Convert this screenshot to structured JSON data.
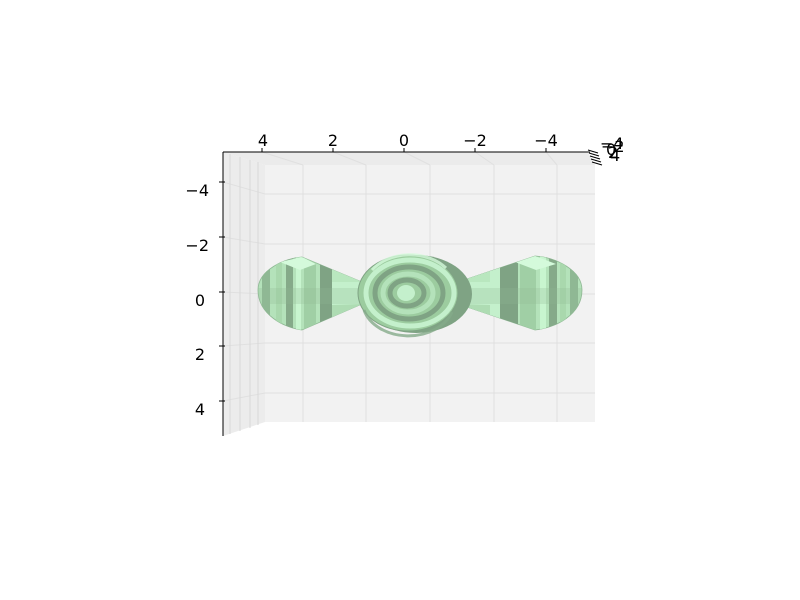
{
  "chart_data": {
    "type": "surface",
    "title": "",
    "xlabel": "",
    "ylabel": "",
    "zlabel": "",
    "x_ticks": [
      "4",
      "2",
      "0",
      "−2",
      "−4"
    ],
    "y_ticks": [
      "−4",
      "−2",
      "0",
      "2",
      "4"
    ],
    "z_ticks": [
      "−4",
      "−2",
      "0",
      "2",
      "4"
    ],
    "xlim": [
      5,
      -5
    ],
    "ylim": [
      -5,
      5
    ],
    "grid": true,
    "colors": {
      "surface_light": "#c4f0cc",
      "surface_mid": "#9ccc9f",
      "surface_dark": "#7fa384",
      "pane": "#f2f2f2",
      "gridline": "#e4e4e4"
    },
    "surface": {
      "shape": "spherical lobes along the horizontal axis",
      "center_lobe": {
        "x": 0,
        "y": 0,
        "r": 1.4
      },
      "side_lobes": [
        {
          "x": 2.2,
          "y": 0,
          "length": 2.5,
          "r": 1.3
        },
        {
          "x": -2.2,
          "y": 0,
          "length": 2.5,
          "r": 1.3
        }
      ]
    }
  }
}
